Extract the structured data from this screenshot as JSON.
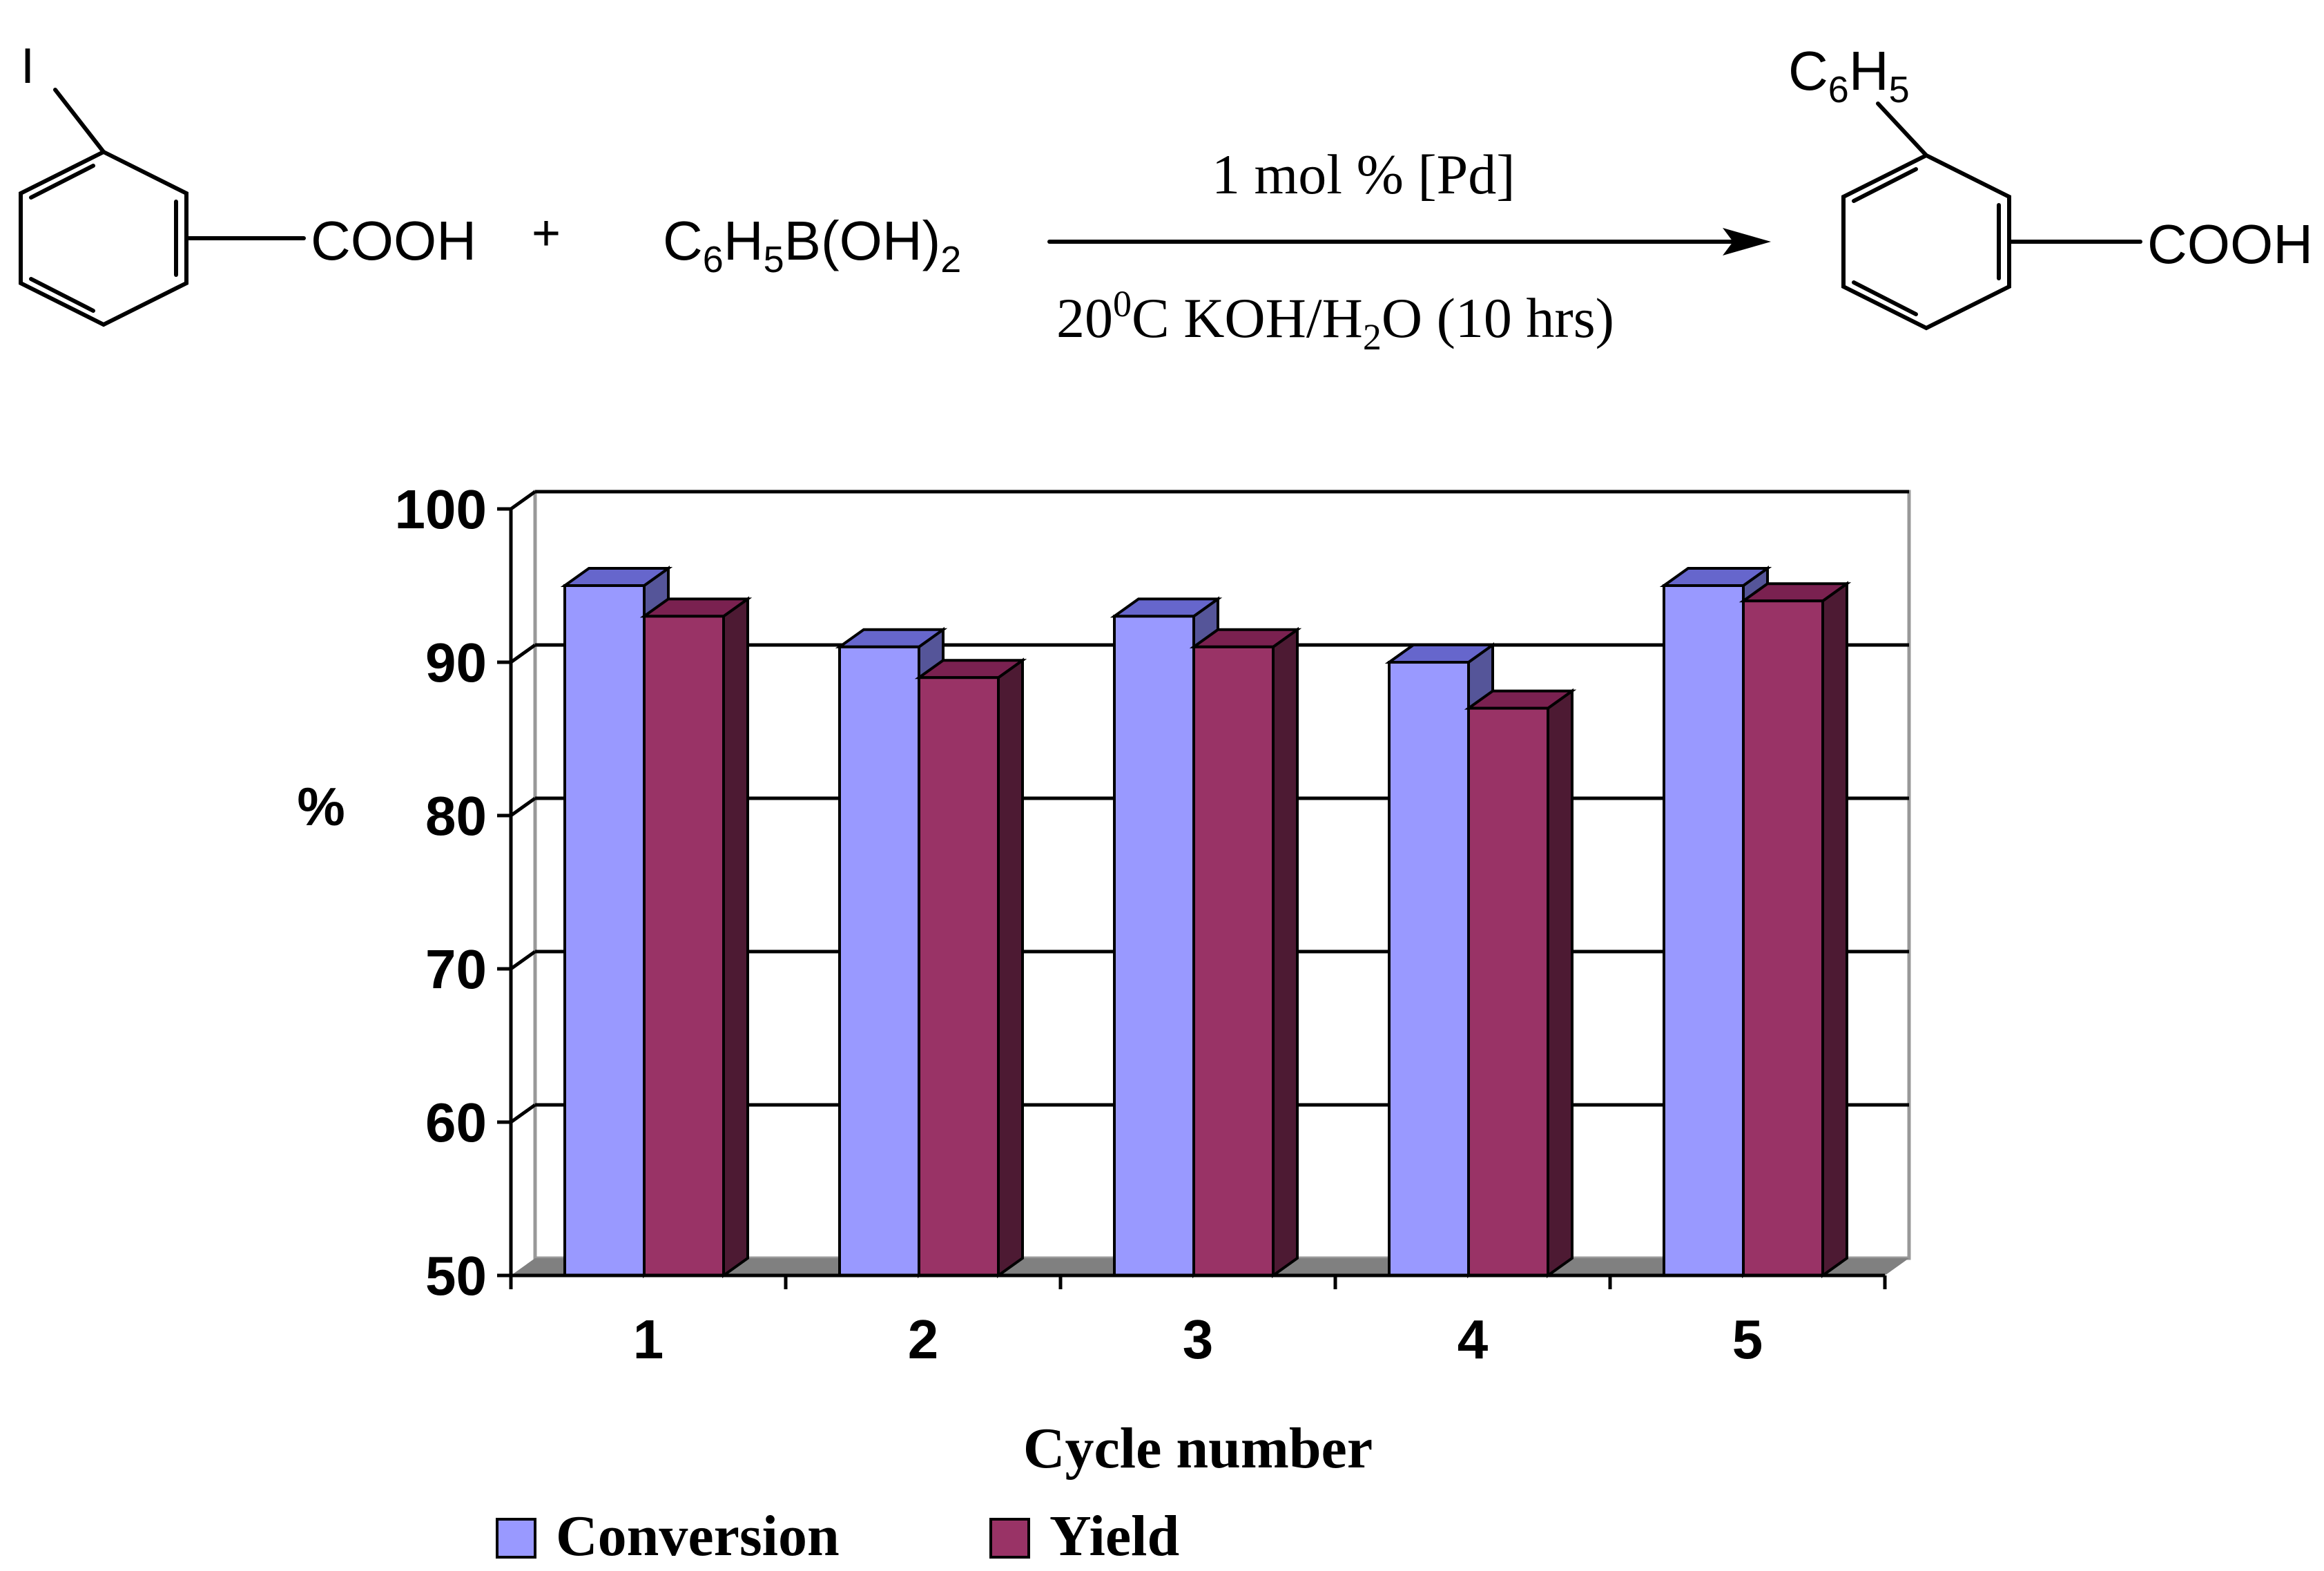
{
  "scheme": {
    "reactant_substituent": "I",
    "reactant_acid": "COOH",
    "plus": "+",
    "boronic_acid": {
      "c": "C",
      "c_sub": "6",
      "h": "H",
      "h_sub": "5",
      "rest": "B(OH)",
      "rest_sub": "2"
    },
    "conditions_top": "1 mol % [Pd]",
    "conditions_bottom": {
      "t": "20",
      "t_sup": "0",
      "rest": "C KOH/H",
      "h_sub": "2",
      "tail": "O (10 hrs)"
    },
    "product_substituent": {
      "c": "C",
      "c_sub": "6",
      "h": "H",
      "h_sub": "5"
    },
    "product_acid": "COOH"
  },
  "chart_data": {
    "type": "bar",
    "title": "",
    "xlabel": "Cycle number",
    "ylabel": "%",
    "categories": [
      "1",
      "2",
      "3",
      "4",
      "5"
    ],
    "ylim": [
      50,
      100
    ],
    "yticks": [
      "50",
      "60",
      "70",
      "80",
      "90",
      "100"
    ],
    "grid": true,
    "legend_position": "bottom",
    "series": [
      {
        "name": "Conversion",
        "values": [
          95,
          91,
          93,
          90,
          95
        ],
        "color": "#9999FF",
        "top_color": "#6666CC",
        "side_color": "#555599"
      },
      {
        "name": "Yield",
        "values": [
          93,
          89,
          91,
          87,
          94
        ],
        "color": "#993366",
        "top_color": "#7A2150",
        "side_color": "#4D1A33"
      }
    ]
  }
}
